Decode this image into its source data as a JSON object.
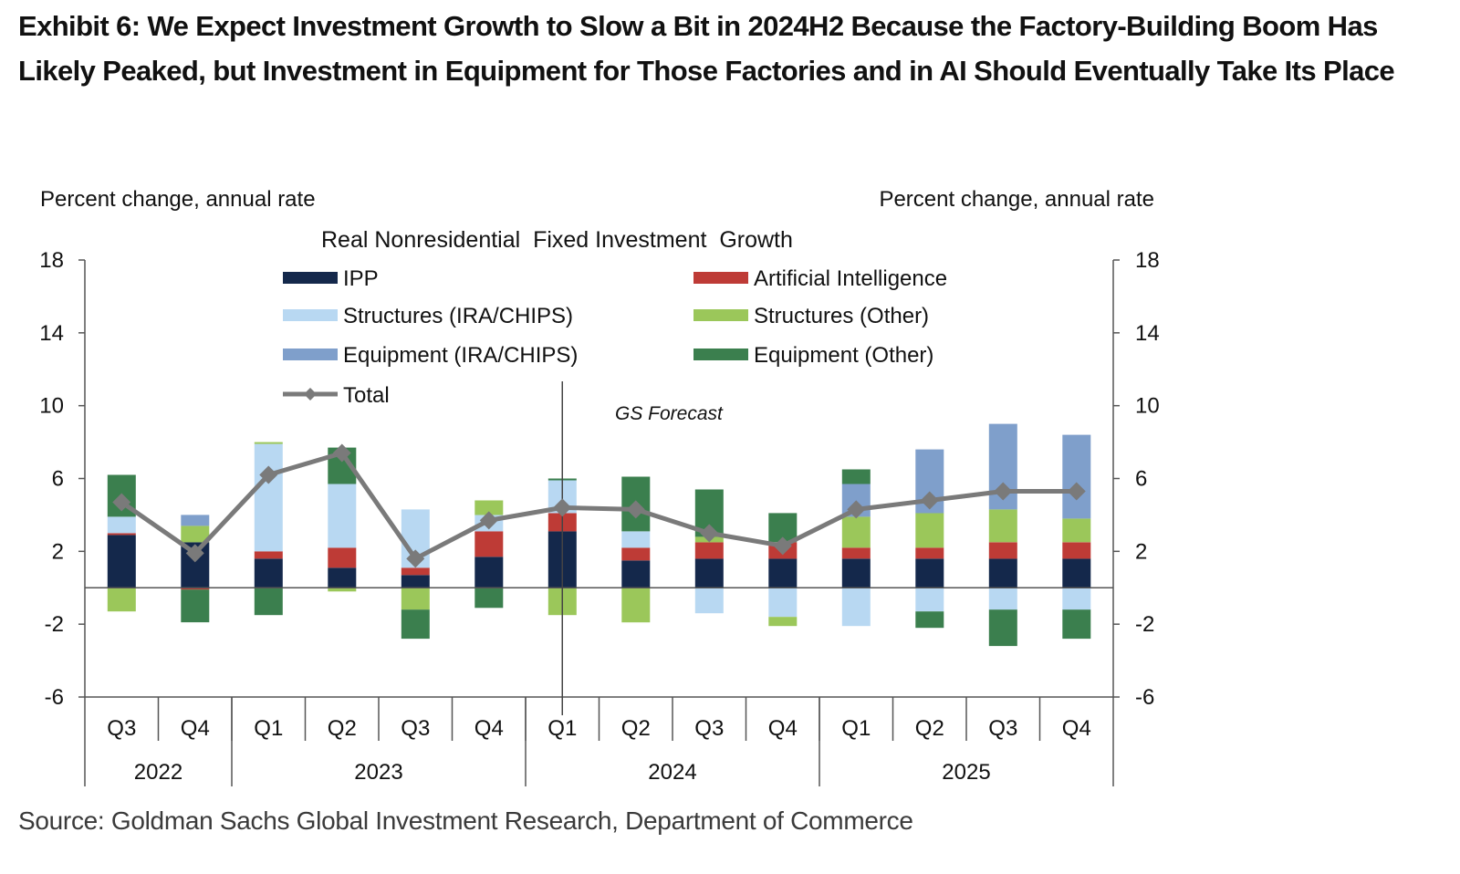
{
  "title": "Exhibit 6: We Expect Investment Growth to Slow a Bit in 2024H2 Because the Factory-Building Boom Has Likely Peaked, but Investment in Equipment for Those Factories and in AI Should Eventually Take Its Place",
  "source": "Source: Goldman Sachs Global Investment Research, Department of Commerce",
  "chart_data": {
    "type": "bar",
    "stacked": true,
    "title": "Real Nonresidential  Fixed Investment  Growth",
    "ylabel_left": "Percent change, annual rate",
    "ylabel_right": "Percent change, annual rate",
    "ylim": [
      -6,
      18
    ],
    "yticks": [
      18,
      14,
      10,
      6,
      2,
      -2,
      -6
    ],
    "annotation": "GS Forecast",
    "categories": [
      "Q3",
      "Q4",
      "Q1",
      "Q2",
      "Q3",
      "Q4",
      "Q1",
      "Q2",
      "Q3",
      "Q4",
      "Q1",
      "Q2",
      "Q3",
      "Q4"
    ],
    "years": [
      {
        "label": "2022",
        "count": 2
      },
      {
        "label": "2023",
        "count": 4
      },
      {
        "label": "2024",
        "count": 4
      },
      {
        "label": "2025",
        "count": 4
      }
    ],
    "forecast_starts_at_index": 7,
    "series": [
      {
        "name": "IPP",
        "color": "#14284b",
        "values": [
          2.9,
          2.5,
          1.6,
          1.1,
          0.7,
          1.7,
          3.1,
          1.5,
          1.6,
          1.6,
          1.6,
          1.6,
          1.6,
          1.6
        ]
      },
      {
        "name": "Artificial Intelligence",
        "color": "#be3b36",
        "values": [
          0.1,
          -0.1,
          0.4,
          1.1,
          0.4,
          1.4,
          1.0,
          0.7,
          0.9,
          0.9,
          0.6,
          0.6,
          0.9,
          0.9
        ]
      },
      {
        "name": "Structures (IRA/CHIPS)",
        "color": "#b8d8f2",
        "values": [
          0.9,
          0.0,
          5.9,
          3.5,
          3.2,
          0.9,
          1.8,
          0.9,
          -1.4,
          -1.6,
          -2.1,
          -1.3,
          -1.2,
          -1.2
        ]
      },
      {
        "name": "Structures (Other)",
        "color": "#9bc75a",
        "values": [
          -1.3,
          0.9,
          0.1,
          -0.2,
          -1.2,
          0.8,
          -1.5,
          -1.9,
          0.3,
          -0.5,
          1.7,
          1.9,
          1.8,
          1.3
        ]
      },
      {
        "name": "Equipment (IRA/CHIPS)",
        "color": "#7f9fcb",
        "values": [
          0.0,
          0.6,
          0.0,
          0.0,
          0.0,
          0.0,
          0.0,
          0.0,
          0.0,
          0.0,
          1.8,
          3.5,
          4.7,
          4.6
        ]
      },
      {
        "name": "Equipment (Other)",
        "color": "#3b7f4e",
        "values": [
          2.3,
          -1.8,
          -1.5,
          2.0,
          -1.6,
          -1.1,
          0.1,
          3.0,
          2.6,
          1.6,
          0.8,
          -0.9,
          -2.0,
          -1.6
        ]
      }
    ],
    "total": {
      "name": "Total",
      "color": "#7a7a7a",
      "values": [
        4.7,
        1.9,
        6.2,
        7.4,
        1.6,
        3.7,
        4.4,
        4.3,
        3.0,
        2.3,
        4.3,
        4.8,
        5.3,
        5.3
      ]
    }
  }
}
